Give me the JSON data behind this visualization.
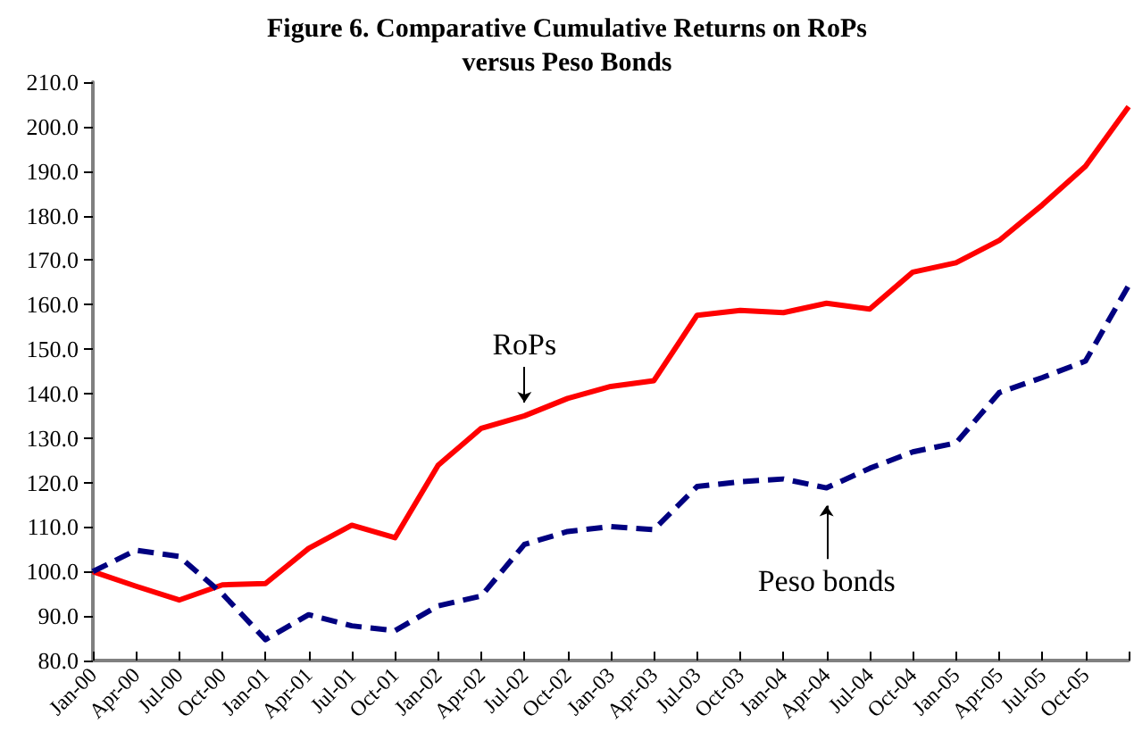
{
  "chart_data": {
    "type": "line",
    "title": "Figure 6. Comparative Cumulative Returns on RoPs\nversus Peso Bonds",
    "categories": [
      "Jan-00",
      "Apr-00",
      "Jul-00",
      "Oct-00",
      "Jan-01",
      "Apr-01",
      "Jul-01",
      "Oct-01",
      "Jan-02",
      "Apr-02",
      "Jul-02",
      "Oct-02",
      "Jan-03",
      "Apr-03",
      "Jul-03",
      "Oct-03",
      "Jan-04",
      "Apr-04",
      "Jul-04",
      "Oct-04",
      "Jan-05",
      "Apr-05",
      "Jul-05",
      "Oct-05",
      null
    ],
    "series": [
      {
        "color": "#ff0000",
        "line_style": "solid",
        "values": [
          100,
          96.7,
          93.6,
          97.0,
          97.3,
          105.2,
          110.4,
          107.6,
          123.9,
          132.2,
          135.0,
          138.9,
          141.6,
          142.9,
          157.6,
          158.7,
          158.2,
          160.3,
          159.0,
          167.3,
          169.4,
          174.4,
          182.4,
          191.1,
          204.5
        ]
      },
      {
        "color": "#000080",
        "line_style": "dashed",
        "values": [
          100,
          104.8,
          103.4,
          95.0,
          84.7,
          90.3,
          87.8,
          86.7,
          92.3,
          94.5,
          106.1,
          109.0,
          110.1,
          109.4,
          119.1,
          120.2,
          120.8,
          118.8,
          123.2,
          126.9,
          128.9,
          140.2,
          143.6,
          147.3,
          164.3
        ]
      }
    ],
    "ylim": [
      80,
      210
    ],
    "yticks": [
      {
        "value": 80,
        "label": "80.0"
      },
      {
        "value": 90,
        "label": "90.0"
      },
      {
        "value": 100,
        "label": "100.0"
      },
      {
        "value": 110,
        "label": "110.0"
      },
      {
        "value": 120,
        "label": "120.0"
      },
      {
        "value": 130,
        "label": "130.0"
      },
      {
        "value": 140,
        "label": "140.0"
      },
      {
        "value": 150,
        "label": "150.0"
      },
      {
        "value": 160,
        "label": "160.0"
      },
      {
        "value": 170,
        "label": "170.0"
      },
      {
        "value": 180,
        "label": "180.0"
      },
      {
        "value": 190,
        "label": "190.0"
      },
      {
        "value": 200,
        "label": "200.0"
      },
      {
        "value": 210,
        "label": "210.0"
      }
    ],
    "annotations": [
      {
        "text": "RoPs",
        "x": "Jul-02",
        "y": 135.0
      },
      {
        "text": "Peso bonds",
        "x": "Apr-04",
        "y": 118.8
      }
    ],
    "marker": "none"
  }
}
